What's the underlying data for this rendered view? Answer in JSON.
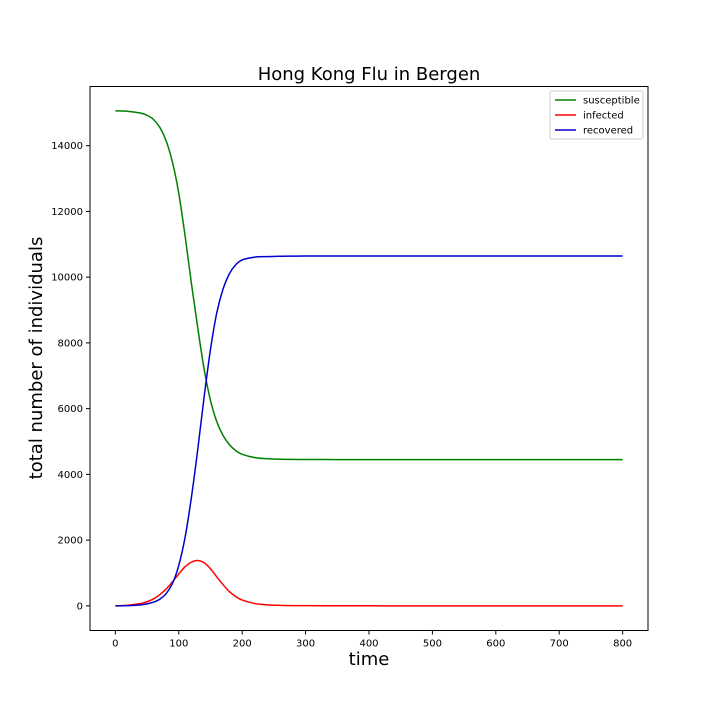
{
  "chart_data": {
    "type": "line",
    "title": "Hong Kong Flu in Bergen",
    "xlabel": "time",
    "ylabel": "total number of individuals",
    "xlim": [
      -40,
      840
    ],
    "ylim": [
      -750,
      15800
    ],
    "xticks": [
      0,
      100,
      200,
      300,
      400,
      500,
      600,
      700,
      800
    ],
    "xtick_labels": [
      "0",
      "100",
      "200",
      "300",
      "400",
      "500",
      "600",
      "700",
      "800"
    ],
    "yticks": [
      0,
      2000,
      4000,
      6000,
      8000,
      10000,
      12000,
      14000
    ],
    "ytick_labels": [
      "0",
      "2000",
      "4000",
      "6000",
      "8000",
      "10000",
      "12000",
      "14000"
    ],
    "grid": false,
    "legend_position": "top-right",
    "x": [
      0,
      20,
      40,
      50,
      60,
      70,
      80,
      90,
      100,
      110,
      120,
      130,
      140,
      150,
      160,
      170,
      180,
      190,
      200,
      220,
      240,
      260,
      280,
      300,
      350,
      400,
      500,
      600,
      700,
      800
    ],
    "series": [
      {
        "name": "susceptible",
        "color": "#008000",
        "values": [
          15060,
          15045,
          14990,
          14925,
          14800,
          14560,
          14150,
          13500,
          12550,
          11250,
          9800,
          8450,
          7200,
          6250,
          5600,
          5180,
          4900,
          4720,
          4610,
          4510,
          4475,
          4460,
          4455,
          4452,
          4450,
          4450,
          4450,
          4450,
          4450,
          4450
        ]
      },
      {
        "name": "infected",
        "color": "#ff0000",
        "values": [
          2,
          20,
          70,
          125,
          210,
          340,
          510,
          730,
          970,
          1190,
          1330,
          1380,
          1310,
          1130,
          880,
          640,
          430,
          280,
          175,
          70,
          30,
          15,
          8,
          5,
          2,
          1,
          0,
          0,
          0,
          0
        ]
      },
      {
        "name": "recovered",
        "color": "#0000cc",
        "values": [
          0,
          5,
          30,
          60,
          110,
          200,
          370,
          680,
          1230,
          2090,
          3310,
          4770,
          6360,
          7800,
          8920,
          9650,
          10110,
          10380,
          10525,
          10610,
          10625,
          10635,
          10640,
          10643,
          10645,
          10645,
          10645,
          10645,
          10645,
          10645
        ]
      }
    ]
  }
}
